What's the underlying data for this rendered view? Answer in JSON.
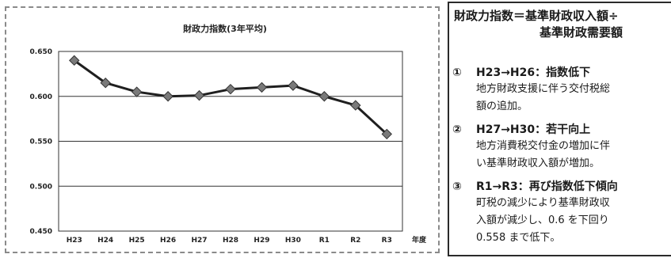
{
  "chart_data": {
    "type": "line",
    "title": "財政力指数(3年平均)",
    "xlabel": "年度",
    "ylabel": "",
    "categories": [
      "H23",
      "H24",
      "H25",
      "H26",
      "H27",
      "H28",
      "H29",
      "H30",
      "R1",
      "R2",
      "R3"
    ],
    "series": [
      {
        "values": [
          0.64,
          0.615,
          0.605,
          0.6,
          0.601,
          0.608,
          0.61,
          0.612,
          0.6,
          0.59,
          0.558
        ]
      }
    ],
    "yticks": [
      "0.450",
      "0.500",
      "0.550",
      "0.600",
      "0.650"
    ],
    "ylim": [
      0.45,
      0.65
    ],
    "grid": true,
    "legend": "none",
    "line_color": "#1f1f1f",
    "marker_color": "#7a7a7a"
  },
  "notes": {
    "formula_line1": "財政力指数＝基準財政収入額÷",
    "formula_line2": "基準財政需要額",
    "items": [
      {
        "num": "①",
        "heading": "H23→H26：指数低下",
        "lines": [
          "地方財政支援に伴う交付税総",
          "額の追加。"
        ]
      },
      {
        "num": "②",
        "heading": "H27→H30：若干向上",
        "lines": [
          "地方消費税交付金の増加に伴",
          "い基準財政収入額が増加。"
        ]
      },
      {
        "num": "③",
        "heading": "R1→R3：再び指数低下傾向",
        "lines": [
          "町税の減少により基準財政収",
          "入額が減少し、0.6 を下回り",
          "0.558 まで低下。"
        ]
      }
    ]
  }
}
